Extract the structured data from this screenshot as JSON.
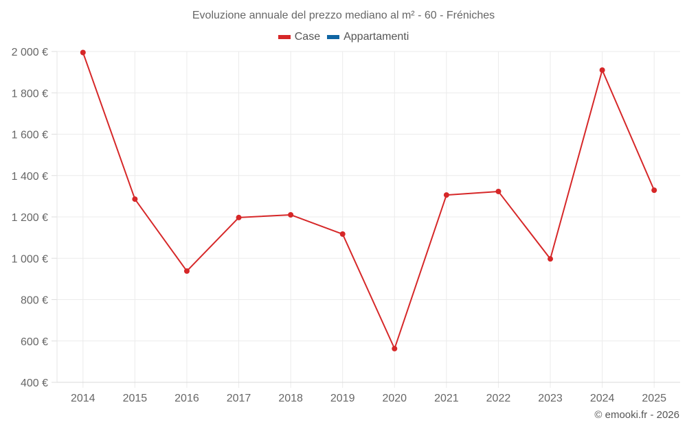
{
  "chart_data": {
    "type": "line",
    "title": "Evoluzione annuale del prezzo mediano al m² - 60 - Fréniches",
    "xlabel": "",
    "ylabel": "",
    "categories": [
      "2014",
      "2015",
      "2016",
      "2017",
      "2018",
      "2019",
      "2020",
      "2021",
      "2022",
      "2023",
      "2024",
      "2025"
    ],
    "series": [
      {
        "name": "Case",
        "color": "#d62728",
        "values": [
          1995,
          1286,
          938,
          1197,
          1210,
          1117,
          563,
          1306,
          1323,
          997,
          1910,
          1329
        ]
      },
      {
        "name": "Appartamenti",
        "color": "#0f65a3",
        "values": []
      }
    ],
    "ylim": [
      400,
      2000
    ],
    "yticks": [
      400,
      600,
      800,
      1000,
      1200,
      1400,
      1600,
      1800,
      2000
    ],
    "ytick_labels": [
      "400 €",
      "600 €",
      "800 €",
      "1 000 €",
      "1 200 €",
      "1 400 €",
      "1 600 €",
      "1 800 €",
      "2 000 €"
    ],
    "grid": true,
    "legend_position": "top-center"
  },
  "title": "Evoluzione annuale del prezzo mediano al m² - 60 - Fréniches",
  "legend": [
    {
      "label": "Case",
      "color": "#d62728"
    },
    {
      "label": "Appartamenti",
      "color": "#0f65a3"
    }
  ],
  "credit": "© emooki.fr - 2026"
}
